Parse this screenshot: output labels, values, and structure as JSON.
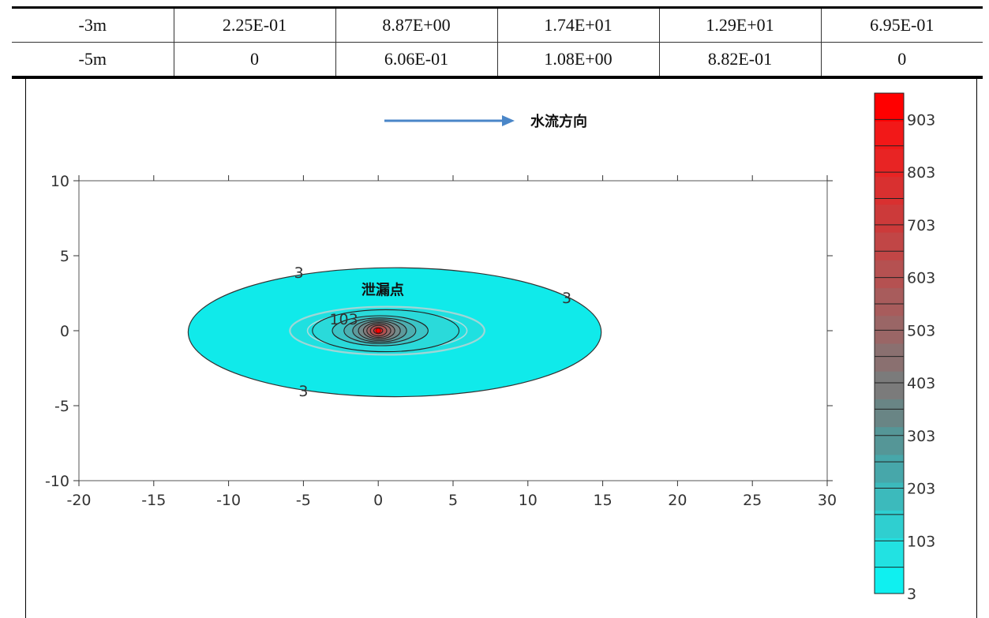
{
  "table": {
    "rows": [
      [
        "-3m",
        "2.25E-01",
        "8.87E+00",
        "1.74E+01",
        "1.29E+01",
        "6.95E-01"
      ],
      [
        "-5m",
        "0",
        "6.06E-01",
        "1.08E+00",
        "8.82E-01",
        "0"
      ]
    ]
  },
  "chart_data": {
    "type": "heatmap",
    "title": "",
    "xlabel": "",
    "ylabel": "",
    "xlim": [
      -20,
      30
    ],
    "ylim": [
      -10,
      10
    ],
    "x_ticks": [
      -20,
      -15,
      -10,
      -5,
      0,
      5,
      10,
      15,
      20,
      25,
      30
    ],
    "y_ticks": [
      -10,
      -5,
      0,
      5,
      10
    ],
    "grid": false,
    "plume": {
      "source": [
        0,
        0
      ],
      "outer_contour": {
        "level": 3,
        "center": [
          1.1,
          -0.1
        ],
        "rx": 13.8,
        "ry": 4.3
      },
      "halo_contour": {
        "center": [
          0.6,
          0
        ],
        "rx": 6.5,
        "ry": 1.6
      },
      "inner_contours": [
        {
          "level": 103,
          "rx": 4.9,
          "ry": 1.4
        },
        {
          "rx": 3.2,
          "ry": 1.0
        },
        {
          "rx": 2.4,
          "ry": 0.85
        },
        {
          "rx": 1.8,
          "ry": 0.75
        },
        {
          "rx": 1.4,
          "ry": 0.65
        },
        {
          "rx": 1.05,
          "ry": 0.55
        },
        {
          "rx": 0.8,
          "ry": 0.45
        },
        {
          "rx": 0.55,
          "ry": 0.35
        },
        {
          "rx": 0.3,
          "ry": 0.2
        }
      ],
      "contour_labels": [
        {
          "text": "3",
          "x": -5.3,
          "y": 3.9
        },
        {
          "text": "3",
          "x": 12.6,
          "y": 2.2
        },
        {
          "text": "3",
          "x": -5.0,
          "y": -4.0
        },
        {
          "text": "103",
          "x": -2.3,
          "y": 0.8
        }
      ]
    },
    "annotations": [
      {
        "text": "泄漏点",
        "x": 0.3,
        "y": 2.7
      },
      {
        "text": "水流方向",
        "arrow": true
      }
    ],
    "colorbar": {
      "levels": [
        3,
        103,
        203,
        303,
        403,
        503,
        603,
        703,
        803,
        903
      ],
      "label_values": [
        3,
        103,
        203,
        303,
        403,
        503,
        603,
        703,
        803,
        903
      ],
      "min": 3,
      "max": 953,
      "colors": [
        "#0ff0f0",
        "#22e2e2",
        "#2fcfd0",
        "#3cbabc",
        "#47a7aa",
        "#559697",
        "#698585",
        "#7b7b7b",
        "#8a7070",
        "#9a6666",
        "#a85c5c",
        "#b55151",
        "#c14646",
        "#cc3a3a",
        "#d93030",
        "#e82424",
        "#f21818",
        "#ff0000"
      ]
    }
  }
}
